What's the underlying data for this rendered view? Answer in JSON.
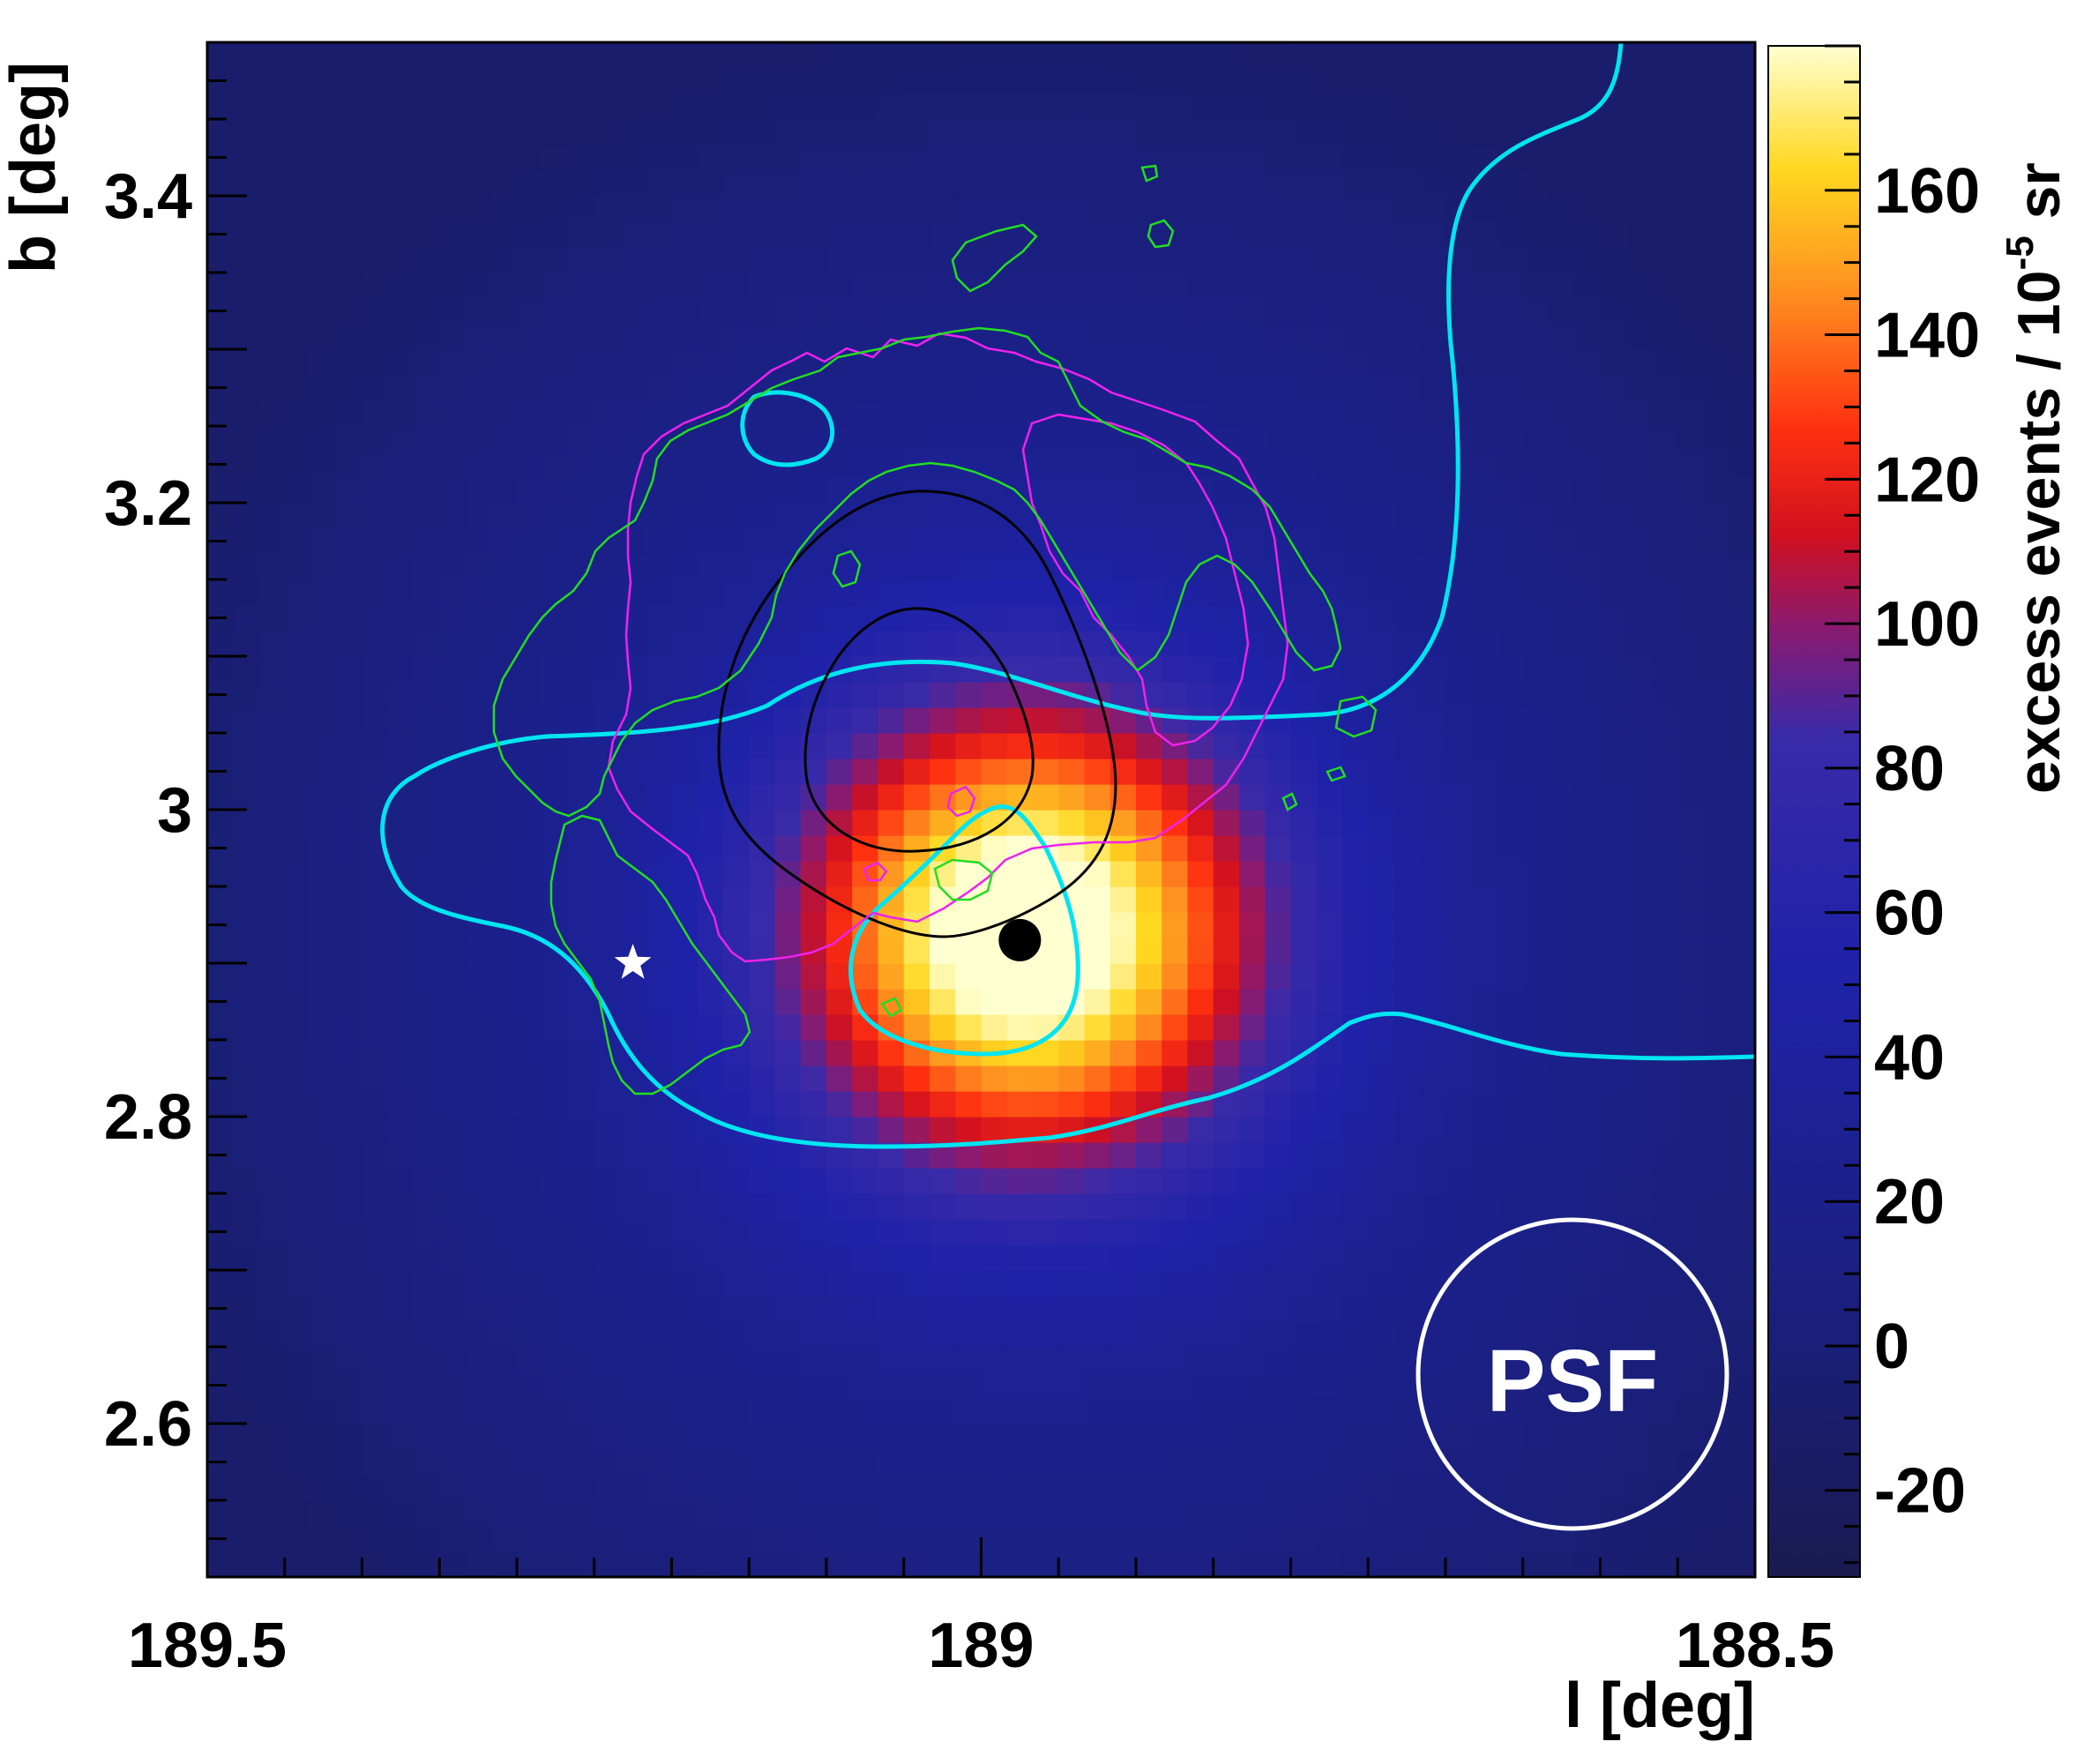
{
  "chart_data": {
    "type": "heatmap",
    "title": "",
    "xlabel": "l [deg]",
    "ylabel": "b [deg]",
    "xlim": [
      189.5,
      188.5
    ],
    "ylim": [
      2.5,
      3.5
    ],
    "x_ticks": [
      "189.5",
      "189",
      "188.5"
    ],
    "y_ticks": [
      "2.6",
      "2.8",
      "3",
      "3.2",
      "3.4"
    ],
    "colorbar": {
      "label_main": "excess events / 10",
      "label_exp": "-5",
      "label_unit": " sr",
      "range": [
        -32,
        180
      ],
      "ticks": [
        "-20",
        "0",
        "20",
        "40",
        "60",
        "80",
        "100",
        "120",
        "140",
        "160"
      ]
    },
    "excess_peak": {
      "l": 188.97,
      "b": 2.92,
      "sigma_deg": 0.11,
      "peak_value": 175,
      "baseline_value": 60
    },
    "markers": [
      {
        "kind": "black-dot",
        "l": 188.975,
        "b": 2.915
      },
      {
        "kind": "white-star",
        "l": 189.225,
        "b": 2.9
      }
    ],
    "psf_label": "PSF",
    "colors": {
      "cyan_contour": "#00e5f0",
      "green_contour": "#22dd22",
      "magenta_contour": "#ee22ee",
      "black_contour": "#000000",
      "psf_circle": "#ffffff"
    }
  }
}
